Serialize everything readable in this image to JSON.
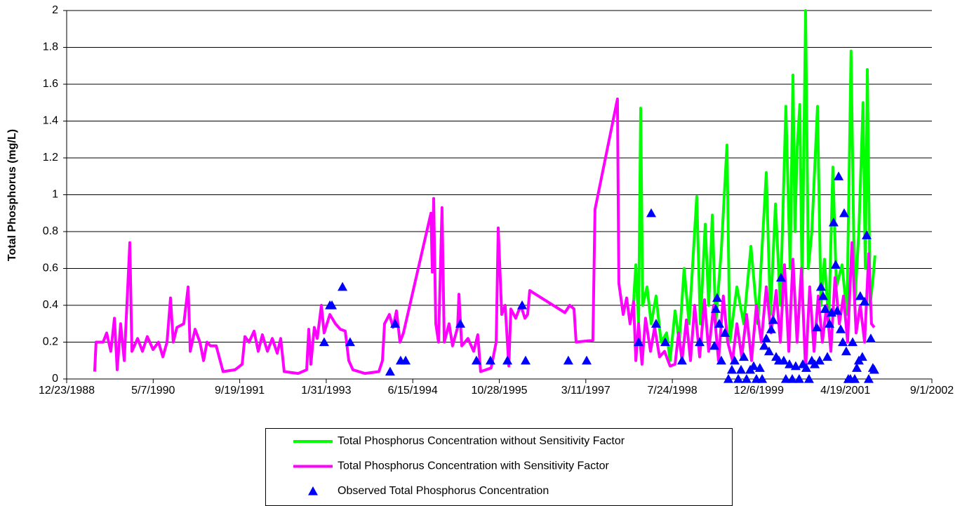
{
  "chart_data": {
    "type": "line",
    "y_label": "Total Phosphorus (mg/L)",
    "xlim": [
      32500,
      37500
    ],
    "xticks": [
      {
        "value": 32500,
        "label": "12/23/1988"
      },
      {
        "value": 33000,
        "label": "5/7/1990"
      },
      {
        "value": 33500,
        "label": "9/19/1991"
      },
      {
        "value": 34000,
        "label": "1/31/1993"
      },
      {
        "value": 34500,
        "label": "6/15/1994"
      },
      {
        "value": 35000,
        "label": "10/28/1995"
      },
      {
        "value": 35500,
        "label": "3/11/1997"
      },
      {
        "value": 36000,
        "label": "7/24/1998"
      },
      {
        "value": 36500,
        "label": "12/6/1999"
      },
      {
        "value": 37000,
        "label": "4/19/2001"
      },
      {
        "value": 37500,
        "label": "9/1/2002"
      }
    ],
    "ylim": [
      0,
      2
    ],
    "yticks": [
      0,
      0.2,
      0.4,
      0.6,
      0.8,
      1,
      1.2,
      1.4,
      1.6,
      1.8,
      2
    ],
    "grid": true,
    "series": [
      {
        "name": "Total Phosphorus Concentration without Sensitivity Factor",
        "color": "#00ff00",
        "style": "line",
        "x": [
          35776,
          35789,
          35805,
          35817,
          35829,
          35854,
          35878,
          35906,
          35935,
          35967,
          35987,
          36016,
          36040,
          36068,
          36097,
          36141,
          36162,
          36190,
          36210,
          36231,
          36251,
          36283,
          36316,
          36332,
          36373,
          36413,
          36454,
          36494,
          36543,
          36567,
          36596,
          36624,
          36656,
          36681,
          36697,
          36709,
          36721,
          36737,
          36750,
          36770,
          36786,
          36806,
          36839,
          36859,
          36879,
          36904,
          36928,
          36948,
          36981,
          37009,
          37033,
          37054,
          37078,
          37102,
          37115,
          37127,
          37143,
          37160,
          37171
        ],
        "values": [
          0.42,
          0.62,
          0.3,
          1.47,
          0.4,
          0.5,
          0.3,
          0.45,
          0.2,
          0.25,
          0.1,
          0.37,
          0.2,
          0.6,
          0.3,
          0.99,
          0.3,
          0.84,
          0.4,
          0.89,
          0.3,
          0.7,
          1.27,
          0.2,
          0.5,
          0.3,
          0.72,
          0.3,
          1.12,
          0.35,
          0.95,
          0.4,
          1.48,
          0.6,
          1.65,
          0.8,
          1.25,
          1.49,
          0.5,
          2.0,
          0.6,
          0.8,
          1.48,
          0.4,
          0.65,
          0.3,
          1.15,
          0.5,
          0.62,
          0.35,
          1.78,
          0.4,
          0.8,
          1.5,
          0.6,
          1.68,
          0.4,
          0.55,
          0.67
        ]
      },
      {
        "name": "Total Phosphorus Concentration with Sensitivity Factor",
        "color": "#ff00ff",
        "style": "line",
        "x": [
          32662,
          32670,
          32711,
          32731,
          32755,
          32776,
          32792,
          32812,
          32833,
          32865,
          32877,
          32910,
          32938,
          32966,
          32999,
          33031,
          33056,
          33080,
          33100,
          33116,
          33137,
          33177,
          33202,
          33214,
          33242,
          33270,
          33291,
          33311,
          33331,
          33364,
          33404,
          33473,
          33514,
          33530,
          33554,
          33583,
          33607,
          33631,
          33660,
          33688,
          33717,
          33737,
          33757,
          33838,
          33887,
          33899,
          33911,
          33931,
          33948,
          33972,
          33988,
          34021,
          34053,
          34081,
          34110,
          34130,
          34154,
          34223,
          34304,
          34325,
          34337,
          34365,
          34386,
          34406,
          34426,
          34446,
          34605,
          34613,
          34621,
          34633,
          34649,
          34669,
          34682,
          34710,
          34730,
          34759,
          34767,
          34783,
          34819,
          34852,
          34876,
          34892,
          34953,
          34982,
          34994,
          35014,
          35034,
          35055,
          35067,
          35095,
          35124,
          35148,
          35164,
          35176,
          35379,
          35407,
          35432,
          35444,
          35541,
          35553,
          35683,
          35691,
          35716,
          35736,
          35756,
          35776,
          35789,
          35805,
          35825,
          35845,
          35874,
          35898,
          35926,
          35955,
          35987,
          36016,
          36036,
          36056,
          36081,
          36105,
          36129,
          36158,
          36186,
          36210,
          36239,
          36267,
          36295,
          36320,
          36348,
          36373,
          36401,
          36429,
          36458,
          36486,
          36514,
          36543,
          36571,
          36600,
          36624,
          36648,
          36673,
          36697,
          36721,
          36746,
          36770,
          36794,
          36819,
          36843,
          36867,
          36892,
          36916,
          36940,
          36965,
          36989,
          37013,
          37038,
          37062,
          37086,
          37111,
          37135,
          37151,
          37167
        ],
        "values": [
          0.04,
          0.2,
          0.2,
          0.25,
          0.15,
          0.33,
          0.05,
          0.3,
          0.1,
          0.74,
          0.15,
          0.22,
          0.15,
          0.23,
          0.16,
          0.2,
          0.12,
          0.2,
          0.44,
          0.2,
          0.28,
          0.3,
          0.5,
          0.15,
          0.27,
          0.2,
          0.1,
          0.2,
          0.18,
          0.18,
          0.04,
          0.05,
          0.08,
          0.23,
          0.2,
          0.26,
          0.15,
          0.24,
          0.15,
          0.22,
          0.14,
          0.22,
          0.04,
          0.03,
          0.05,
          0.27,
          0.08,
          0.28,
          0.22,
          0.4,
          0.25,
          0.35,
          0.3,
          0.27,
          0.26,
          0.1,
          0.05,
          0.03,
          0.04,
          0.1,
          0.3,
          0.35,
          0.28,
          0.37,
          0.2,
          0.25,
          0.9,
          0.58,
          0.98,
          0.3,
          0.2,
          0.93,
          0.2,
          0.3,
          0.18,
          0.28,
          0.46,
          0.18,
          0.22,
          0.15,
          0.24,
          0.04,
          0.06,
          0.2,
          0.82,
          0.35,
          0.4,
          0.07,
          0.38,
          0.33,
          0.4,
          0.33,
          0.35,
          0.48,
          0.36,
          0.4,
          0.38,
          0.2,
          0.21,
          0.92,
          1.52,
          0.52,
          0.35,
          0.44,
          0.3,
          0.42,
          0.1,
          0.3,
          0.08,
          0.33,
          0.15,
          0.28,
          0.12,
          0.15,
          0.07,
          0.08,
          0.25,
          0.1,
          0.32,
          0.1,
          0.4,
          0.12,
          0.43,
          0.15,
          0.4,
          0.1,
          0.45,
          0.2,
          0.1,
          0.3,
          0.12,
          0.35,
          0.1,
          0.4,
          0.2,
          0.5,
          0.25,
          0.48,
          0.2,
          0.62,
          0.15,
          0.65,
          0.2,
          0.6,
          0.05,
          0.5,
          0.15,
          0.45,
          0.2,
          0.4,
          0.15,
          0.55,
          0.3,
          0.45,
          0.2,
          0.74,
          0.25,
          0.4,
          0.2,
          0.68,
          0.3,
          0.28
        ]
      },
      {
        "name": "Observed Total Phosphorus Concentration",
        "color": "#0000ff",
        "style": "triangle",
        "x": [
          33988,
          34021,
          34033,
          34094,
          34138,
          34369,
          34398,
          34430,
          34459,
          34775,
          34868,
          34949,
          35047,
          35132,
          35152,
          35399,
          35505,
          35805,
          35878,
          35906,
          35959,
          36056,
          36158,
          36243,
          36251,
          36259,
          36271,
          36283,
          36304,
          36324,
          36344,
          36360,
          36381,
          36397,
          36413,
          36429,
          36450,
          36470,
          36486,
          36506,
          36519,
          36531,
          36543,
          36559,
          36571,
          36583,
          36600,
          36616,
          36628,
          36644,
          36656,
          36677,
          36693,
          36713,
          36733,
          36754,
          36774,
          36790,
          36806,
          36823,
          36835,
          36851,
          36859,
          36871,
          36883,
          36896,
          36908,
          36920,
          36932,
          36944,
          36952,
          36961,
          36973,
          36985,
          36993,
          37005,
          37017,
          37029,
          37042,
          37054,
          37066,
          37078,
          37086,
          37098,
          37111,
          37123,
          37135,
          37147,
          37159,
          37167
        ],
        "values": [
          0.2,
          0.4,
          0.4,
          0.5,
          0.2,
          0.04,
          0.3,
          0.1,
          0.1,
          0.3,
          0.1,
          0.1,
          0.1,
          0.4,
          0.1,
          0.1,
          0.1,
          0.2,
          0.9,
          0.3,
          0.2,
          0.1,
          0.2,
          0.18,
          0.38,
          0.44,
          0.3,
          0.1,
          0.25,
          0,
          0.05,
          0.1,
          0,
          0.05,
          0.12,
          0,
          0.05,
          0.07,
          0,
          0.06,
          0,
          0.18,
          0.22,
          0.15,
          0.27,
          0.32,
          0.12,
          0.1,
          0.55,
          0.1,
          0,
          0.08,
          0,
          0.07,
          0,
          0.08,
          0.06,
          0,
          0.1,
          0.08,
          0.28,
          0.1,
          0.5,
          0.45,
          0.38,
          0.12,
          0.3,
          0.36,
          0.85,
          0.62,
          0.37,
          1.1,
          0.27,
          0.2,
          0.9,
          0.15,
          0,
          0,
          0.2,
          0,
          0.06,
          0.1,
          0.45,
          0.12,
          0.42,
          0.78,
          0,
          0.22,
          0.06,
          0.05
        ]
      }
    ]
  }
}
